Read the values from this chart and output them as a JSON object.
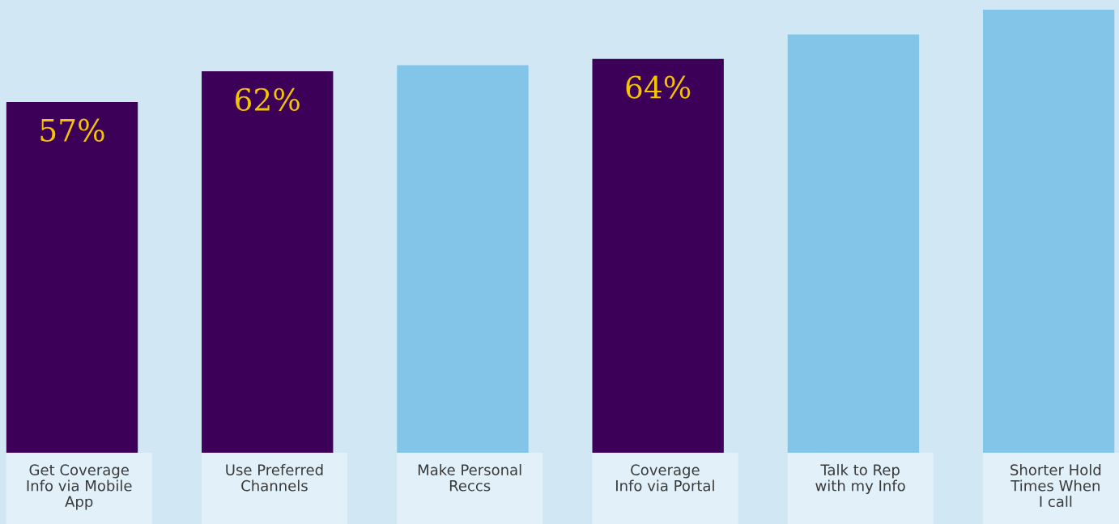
{
  "chart_data": {
    "type": "bar",
    "categories": [
      "Get Coverage\nInfo via Mobile\nApp",
      "Use Preferred\nChannels",
      "Make Personal\nReccs",
      "Coverage\nInfo via Portal",
      "Talk to Rep\nwith my Info",
      "Shorter Hold\nTimes When\nI call"
    ],
    "values": [
      57,
      62,
      63,
      64,
      68,
      72
    ],
    "colors": [
      "#3c0058",
      "#3c0058",
      "#83c5e8",
      "#3c0058",
      "#83c5e8",
      "#83c5e8"
    ],
    "value_labels": [
      "57%",
      "62%",
      null,
      "64%",
      null,
      null
    ]
  }
}
